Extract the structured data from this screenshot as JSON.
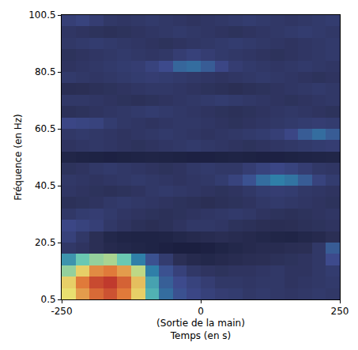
{
  "chart_data": {
    "type": "heatmap",
    "xlabel": "(Sortie de la main)\nTemps (en s)",
    "ylabel": "Fréquence (en Hz)",
    "x": [
      -237.5,
      -212.5,
      -187.5,
      -162.5,
      -137.5,
      -112.5,
      -87.5,
      -62.5,
      -37.5,
      -12.5,
      12.5,
      37.5,
      62.5,
      87.5,
      112.5,
      137.5,
      162.5,
      187.5,
      212.5,
      237.5
    ],
    "y": [
      2.5,
      6.5,
      10.5,
      14.5,
      18.5,
      22.5,
      26.5,
      30.5,
      34.5,
      38.5,
      42.5,
      46.5,
      50.5,
      54.5,
      58.5,
      62.5,
      66.5,
      70.5,
      74.5,
      78.5,
      82.5,
      86.5,
      90.5,
      94.5,
      98.5
    ],
    "z": [
      [
        0.78,
        0.86,
        0.92,
        0.95,
        0.9,
        0.8,
        0.62,
        0.5,
        0.42,
        0.38,
        0.35,
        0.33,
        0.32,
        0.3,
        0.31,
        0.3,
        0.29,
        0.3,
        0.31,
        0.3
      ],
      [
        0.8,
        0.9,
        0.96,
        0.98,
        0.93,
        0.82,
        0.6,
        0.46,
        0.4,
        0.36,
        0.33,
        0.3,
        0.3,
        0.29,
        0.3,
        0.3,
        0.28,
        0.29,
        0.3,
        0.31
      ],
      [
        0.7,
        0.8,
        0.88,
        0.9,
        0.86,
        0.74,
        0.55,
        0.42,
        0.35,
        0.3,
        0.28,
        0.27,
        0.28,
        0.28,
        0.29,
        0.3,
        0.28,
        0.28,
        0.3,
        0.32
      ],
      [
        0.58,
        0.66,
        0.7,
        0.72,
        0.66,
        0.55,
        0.42,
        0.32,
        0.25,
        0.2,
        0.18,
        0.2,
        0.22,
        0.24,
        0.25,
        0.26,
        0.27,
        0.28,
        0.3,
        0.4
      ],
      [
        0.3,
        0.28,
        0.25,
        0.2,
        0.18,
        0.16,
        0.14,
        0.12,
        0.1,
        0.1,
        0.12,
        0.15,
        0.18,
        0.2,
        0.22,
        0.22,
        0.24,
        0.25,
        0.3,
        0.45
      ],
      [
        0.35,
        0.3,
        0.25,
        0.18,
        0.15,
        0.14,
        0.14,
        0.15,
        0.18,
        0.2,
        0.22,
        0.24,
        0.22,
        0.2,
        0.18,
        0.16,
        0.15,
        0.18,
        0.2,
        0.25
      ],
      [
        0.38,
        0.36,
        0.34,
        0.3,
        0.28,
        0.26,
        0.25,
        0.26,
        0.28,
        0.3,
        0.3,
        0.29,
        0.27,
        0.26,
        0.25,
        0.24,
        0.25,
        0.26,
        0.27,
        0.28
      ],
      [
        0.3,
        0.32,
        0.33,
        0.31,
        0.29,
        0.28,
        0.27,
        0.26,
        0.27,
        0.28,
        0.29,
        0.3,
        0.31,
        0.3,
        0.28,
        0.27,
        0.26,
        0.27,
        0.28,
        0.29
      ],
      [
        0.26,
        0.27,
        0.28,
        0.3,
        0.31,
        0.3,
        0.29,
        0.28,
        0.27,
        0.26,
        0.25,
        0.26,
        0.27,
        0.28,
        0.3,
        0.31,
        0.3,
        0.29,
        0.28,
        0.27
      ],
      [
        0.29,
        0.28,
        0.27,
        0.26,
        0.27,
        0.28,
        0.3,
        0.31,
        0.3,
        0.29,
        0.28,
        0.27,
        0.28,
        0.3,
        0.32,
        0.33,
        0.32,
        0.3,
        0.29,
        0.28
      ],
      [
        0.3,
        0.29,
        0.28,
        0.29,
        0.3,
        0.31,
        0.3,
        0.29,
        0.28,
        0.29,
        0.3,
        0.32,
        0.36,
        0.42,
        0.5,
        0.55,
        0.52,
        0.45,
        0.36,
        0.32
      ],
      [
        0.27,
        0.28,
        0.3,
        0.31,
        0.3,
        0.29,
        0.28,
        0.27,
        0.28,
        0.3,
        0.31,
        0.3,
        0.3,
        0.33,
        0.36,
        0.38,
        0.36,
        0.33,
        0.3,
        0.29
      ],
      [
        0.16,
        0.14,
        0.13,
        0.12,
        0.13,
        0.14,
        0.15,
        0.14,
        0.13,
        0.12,
        0.12,
        0.13,
        0.14,
        0.13,
        0.12,
        0.12,
        0.13,
        0.14,
        0.15,
        0.16
      ],
      [
        0.28,
        0.29,
        0.3,
        0.29,
        0.28,
        0.27,
        0.28,
        0.29,
        0.3,
        0.31,
        0.3,
        0.29,
        0.28,
        0.27,
        0.28,
        0.29,
        0.3,
        0.31,
        0.32,
        0.33
      ],
      [
        0.3,
        0.31,
        0.3,
        0.29,
        0.28,
        0.29,
        0.3,
        0.31,
        0.3,
        0.29,
        0.28,
        0.29,
        0.3,
        0.31,
        0.32,
        0.34,
        0.38,
        0.45,
        0.5,
        0.45
      ],
      [
        0.38,
        0.37,
        0.36,
        0.32,
        0.3,
        0.29,
        0.28,
        0.29,
        0.3,
        0.3,
        0.29,
        0.28,
        0.27,
        0.28,
        0.29,
        0.3,
        0.31,
        0.32,
        0.33,
        0.32
      ],
      [
        0.26,
        0.27,
        0.28,
        0.29,
        0.3,
        0.31,
        0.32,
        0.31,
        0.3,
        0.29,
        0.28,
        0.27,
        0.26,
        0.27,
        0.28,
        0.29,
        0.3,
        0.29,
        0.28,
        0.27
      ],
      [
        0.3,
        0.3,
        0.29,
        0.28,
        0.27,
        0.26,
        0.27,
        0.28,
        0.29,
        0.3,
        0.31,
        0.32,
        0.31,
        0.3,
        0.29,
        0.28,
        0.27,
        0.28,
        0.29,
        0.3
      ],
      [
        0.24,
        0.25,
        0.26,
        0.27,
        0.28,
        0.29,
        0.3,
        0.3,
        0.29,
        0.28,
        0.27,
        0.26,
        0.25,
        0.26,
        0.27,
        0.28,
        0.29,
        0.3,
        0.31,
        0.3
      ],
      [
        0.31,
        0.3,
        0.29,
        0.3,
        0.31,
        0.32,
        0.33,
        0.32,
        0.31,
        0.3,
        0.29,
        0.28,
        0.29,
        0.3,
        0.31,
        0.3,
        0.29,
        0.28,
        0.27,
        0.28
      ],
      [
        0.28,
        0.29,
        0.3,
        0.31,
        0.32,
        0.33,
        0.36,
        0.4,
        0.48,
        0.5,
        0.45,
        0.38,
        0.33,
        0.31,
        0.3,
        0.29,
        0.3,
        0.31,
        0.3,
        0.29
      ],
      [
        0.27,
        0.28,
        0.29,
        0.3,
        0.31,
        0.3,
        0.29,
        0.3,
        0.33,
        0.35,
        0.33,
        0.31,
        0.3,
        0.29,
        0.28,
        0.27,
        0.28,
        0.29,
        0.3,
        0.31
      ],
      [
        0.3,
        0.31,
        0.32,
        0.31,
        0.3,
        0.29,
        0.28,
        0.27,
        0.28,
        0.29,
        0.3,
        0.31,
        0.32,
        0.31,
        0.3,
        0.29,
        0.28,
        0.29,
        0.3,
        0.31
      ],
      [
        0.29,
        0.28,
        0.27,
        0.26,
        0.27,
        0.28,
        0.29,
        0.3,
        0.31,
        0.3,
        0.29,
        0.28,
        0.27,
        0.28,
        0.29,
        0.3,
        0.31,
        0.32,
        0.31,
        0.3
      ],
      [
        0.34,
        0.36,
        0.33,
        0.3,
        0.29,
        0.3,
        0.31,
        0.3,
        0.29,
        0.28,
        0.29,
        0.3,
        0.31,
        0.32,
        0.31,
        0.3,
        0.29,
        0.3,
        0.31,
        0.32
      ]
    ],
    "zlim": [
      0,
      1
    ],
    "xlim": [
      -250,
      250
    ],
    "xticks": [
      -250,
      0,
      250
    ],
    "ylim": [
      0.5,
      100.5
    ],
    "yticks": [
      0.5,
      20.5,
      40.5,
      60.5,
      80.5,
      100.5
    ],
    "grid": false,
    "tick_labels": true
  }
}
